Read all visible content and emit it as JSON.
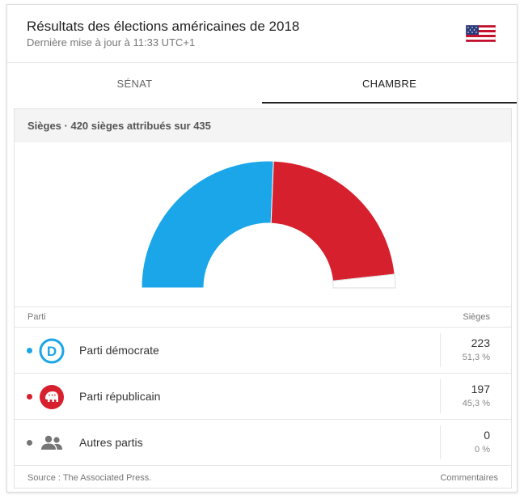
{
  "header": {
    "title": "Résultats des élections américaines de 2018",
    "updated": "Dernière mise à jour à 11:33 UTC+1"
  },
  "tabs": [
    {
      "label": "SÉNAT",
      "active": false
    },
    {
      "label": "CHAMBRE",
      "active": true
    }
  ],
  "panel": {
    "heading": "Sièges · 420 sièges attribués sur 435"
  },
  "table": {
    "col_party": "Parti",
    "col_seats": "Sièges",
    "rows": [
      {
        "name": "Parti démocrate",
        "seats": "223",
        "pct": "51,3 %",
        "color": "#1aa6e8",
        "icon": "democrat-donkey-icon"
      },
      {
        "name": "Parti républicain",
        "seats": "197",
        "pct": "45,3 %",
        "color": "#d7202d",
        "icon": "republican-elephant-icon"
      },
      {
        "name": "Autres partis",
        "seats": "0",
        "pct": "0 %",
        "color": "#757575",
        "icon": "people-icon"
      }
    ]
  },
  "footer": {
    "source": "Source : The Associated Press.",
    "comments": "Commentaires"
  },
  "chart_data": {
    "type": "pie",
    "total": 435,
    "series": [
      {
        "name": "Parti démocrate",
        "value": 223,
        "color": "#1aa6e8"
      },
      {
        "name": "Parti républicain",
        "value": 197,
        "color": "#d7202d"
      },
      {
        "name": "Autres partis",
        "value": 0,
        "color": "#757575"
      }
    ],
    "unassigned": {
      "value": 15,
      "color": "#ffffff"
    }
  }
}
